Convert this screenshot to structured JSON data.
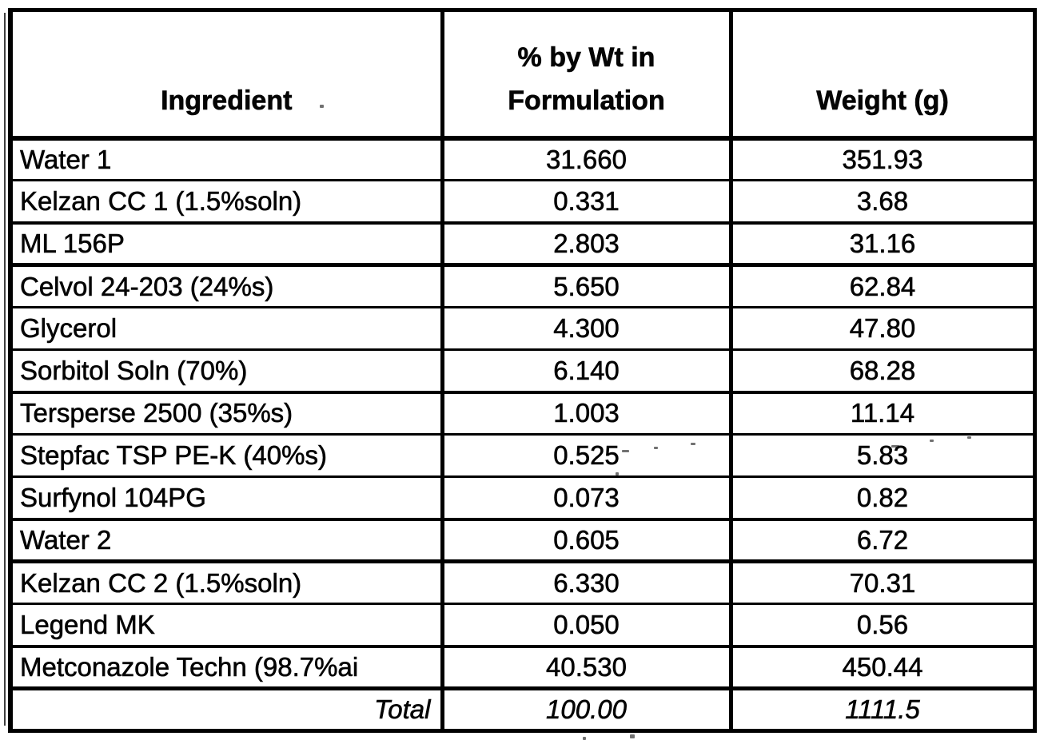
{
  "table": {
    "headers": [
      "Ingredient",
      "% by Wt in Formulation",
      "Weight (g)"
    ],
    "rows": [
      {
        "ingredient": "Water 1",
        "pct": "31.660",
        "weight": "351.93"
      },
      {
        "ingredient": "Kelzan CC 1 (1.5%soln)",
        "pct": "0.331",
        "weight": "3.68"
      },
      {
        "ingredient": "ML 156P",
        "pct": "2.803",
        "weight": "31.16"
      },
      {
        "ingredient": "Celvol 24-203 (24%s)",
        "pct": "5.650",
        "weight": "62.84"
      },
      {
        "ingredient": "Glycerol",
        "pct": "4.300",
        "weight": "47.80"
      },
      {
        "ingredient": "Sorbitol Soln (70%)",
        "pct": "6.140",
        "weight": "68.28"
      },
      {
        "ingredient": "Tersperse 2500 (35%s)",
        "pct": "1.003",
        "weight": "11.14"
      },
      {
        "ingredient": "Stepfac TSP PE-K (40%s)",
        "pct": "0.525",
        "weight": "5.83"
      },
      {
        "ingredient": "Surfynol 104PG",
        "pct": "0.073",
        "weight": "0.82"
      },
      {
        "ingredient": "Water 2",
        "pct": "0.605",
        "weight": "6.72"
      },
      {
        "ingredient": "Kelzan CC 2 (1.5%soln)",
        "pct": "6.330",
        "weight": "70.31"
      },
      {
        "ingredient": "Legend MK",
        "pct": "0.050",
        "weight": "0.56"
      },
      {
        "ingredient": "Metconazole Techn (98.7%ai",
        "pct": "40.530",
        "weight": "450.44"
      }
    ],
    "total": {
      "label": "Total",
      "pct": "100.00",
      "weight": "1111.5"
    }
  }
}
